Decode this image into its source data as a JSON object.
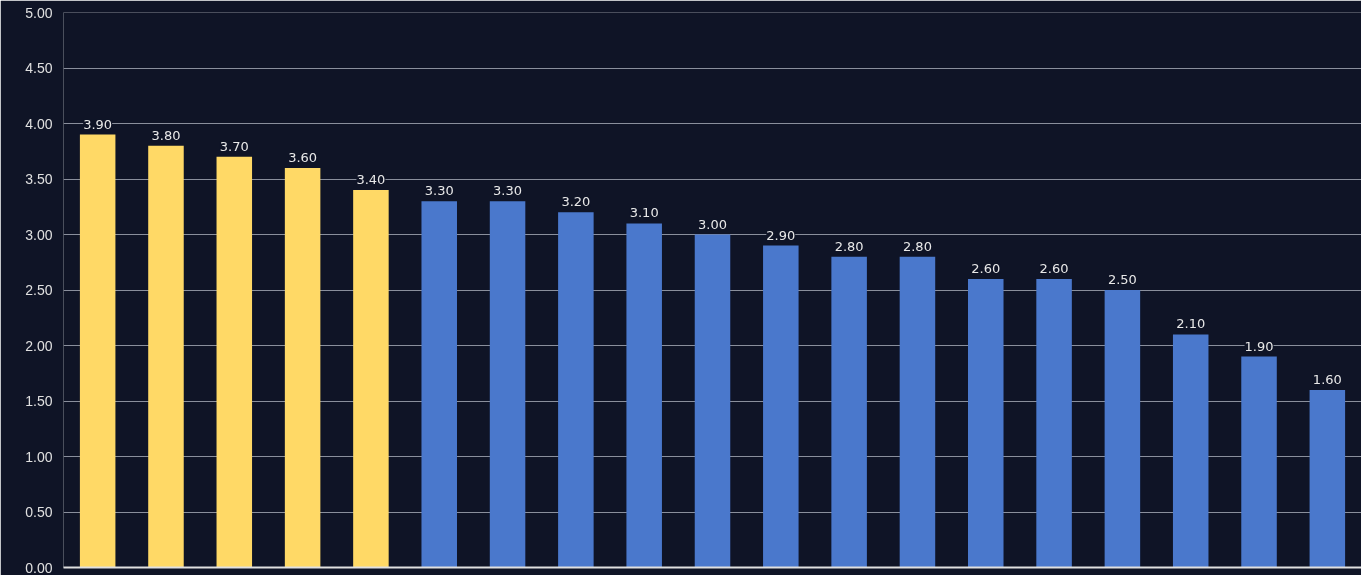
{
  "chart_data": {
    "type": "bar",
    "categories": [
      null,
      null,
      null,
      null,
      null,
      null,
      null,
      null,
      null,
      null,
      null,
      null,
      null,
      null,
      null,
      null,
      null,
      null,
      null
    ],
    "values": [
      3.9,
      3.8,
      3.7,
      3.6,
      3.4,
      3.3,
      3.3,
      3.2,
      3.1,
      3.0,
      2.9,
      2.8,
      2.8,
      2.6,
      2.6,
      2.5,
      2.1,
      1.9,
      1.6
    ],
    "colors": [
      "#ffd966",
      "#ffd966",
      "#ffd966",
      "#ffd966",
      "#ffd966",
      "#4a78cc",
      "#4a78cc",
      "#4a78cc",
      "#4a78cc",
      "#4a78cc",
      "#4a78cc",
      "#4a78cc",
      "#4a78cc",
      "#4a78cc",
      "#4a78cc",
      "#4a78cc",
      "#4a78cc",
      "#4a78cc",
      "#4a78cc"
    ],
    "value_labels": [
      "3.90",
      "3.80",
      "3.70",
      "3.60",
      "3.40",
      "3.30",
      "3.30",
      "3.20",
      "3.10",
      "3.00",
      "2.90",
      "2.80",
      "2.80",
      "2.60",
      "2.60",
      "2.50",
      "2.10",
      "1.90",
      "1.60"
    ],
    "ylim": [
      0,
      5
    ],
    "yticks": [
      {
        "value": 0,
        "label": "0.00"
      },
      {
        "value": 0.5,
        "label": "0.50"
      },
      {
        "value": 1,
        "label": "1.00"
      },
      {
        "value": 1.5,
        "label": "1.50"
      },
      {
        "value": 2,
        "label": "2.00"
      },
      {
        "value": 2.5,
        "label": "2.50"
      },
      {
        "value": 3,
        "label": "3.00"
      },
      {
        "value": 3.5,
        "label": "3.50"
      },
      {
        "value": 4,
        "label": "4.00"
      },
      {
        "value": 4.5,
        "label": "4.50"
      },
      {
        "value": 5,
        "label": "5.00"
      }
    ],
    "grid": "y",
    "tick_labels": "y"
  }
}
